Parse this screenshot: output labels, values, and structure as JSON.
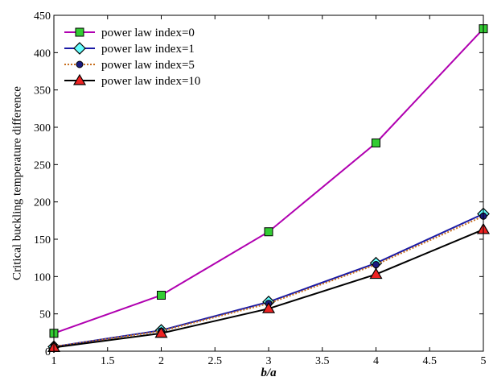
{
  "chart_data": {
    "type": "line",
    "title": "",
    "xlabel": "b/a",
    "ylabel": "Critical buckling temperature difference",
    "xlim": [
      1,
      5
    ],
    "ylim": [
      0,
      450
    ],
    "xticks": [
      1,
      1.5,
      2,
      2.5,
      3,
      3.5,
      4,
      4.5,
      5
    ],
    "xtick_labels": [
      "1",
      "1.5",
      "2",
      "2.5",
      "3",
      "3.5",
      "4",
      "4.5",
      "5"
    ],
    "yticks": [
      0,
      50,
      100,
      150,
      200,
      250,
      300,
      350,
      400,
      450
    ],
    "ytick_labels": [
      "0",
      "50",
      "100",
      "150",
      "200",
      "250",
      "300",
      "350",
      "400",
      "450"
    ],
    "grid": false,
    "legend_position": "top-left",
    "x": [
      1,
      2,
      3,
      4,
      5
    ],
    "series": [
      {
        "name": "power law index=0",
        "values": [
          24,
          75,
          160,
          279,
          432
        ],
        "line_color": "#b000b0",
        "line_style": "solid",
        "marker": "square",
        "marker_fill": "#33cc33",
        "marker_edge": "#000000"
      },
      {
        "name": "power law index=1",
        "values": [
          6,
          28,
          66,
          118,
          184
        ],
        "line_color": "#1a1aa6",
        "line_style": "solid",
        "marker": "diamond",
        "marker_fill": "#66ffff",
        "marker_edge": "#000000"
      },
      {
        "name": "power law index=5",
        "values": [
          6,
          27,
          64,
          116,
          181
        ],
        "line_color": "#c87020",
        "line_style": "dotted",
        "marker": "circle",
        "marker_fill": "#1a1a80",
        "marker_edge": "#000000"
      },
      {
        "name": "power law index=10",
        "values": [
          5,
          24,
          57,
          103,
          163
        ],
        "line_color": "#000000",
        "line_style": "solid",
        "marker": "triangle",
        "marker_fill": "#ee2222",
        "marker_edge": "#000000"
      }
    ]
  }
}
